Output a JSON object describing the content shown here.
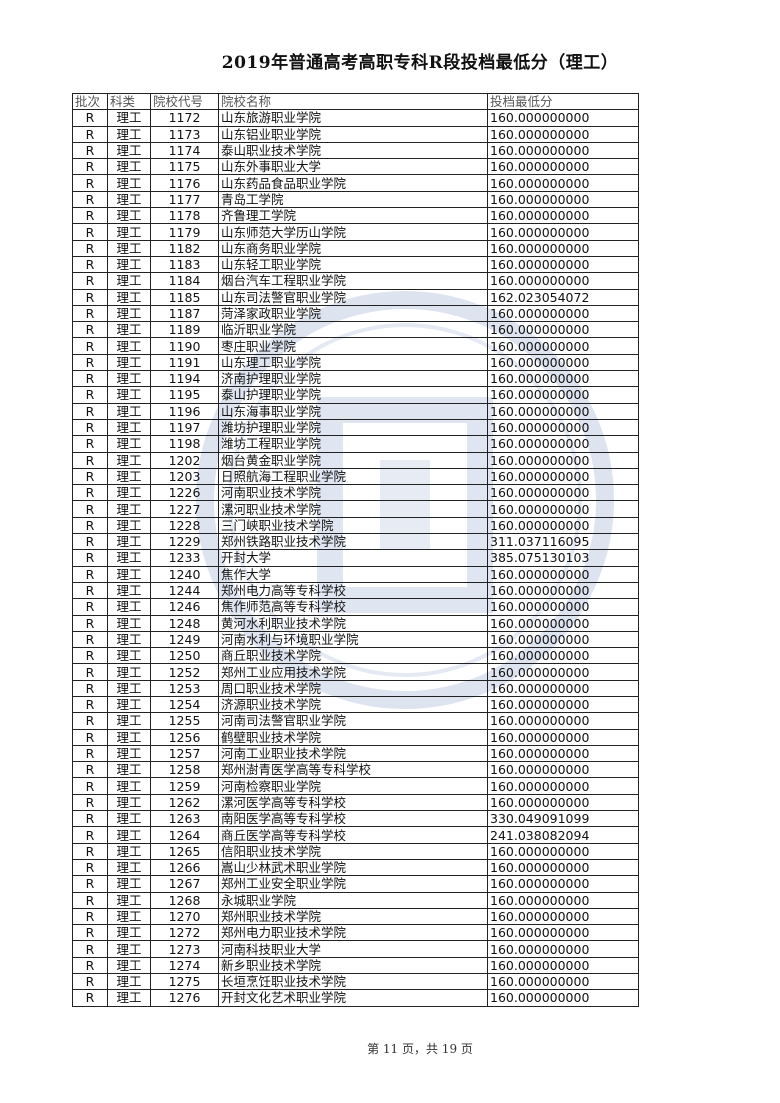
{
  "title": "2019年普通高考高职专科R段投档最低分（理工）",
  "table": {
    "headers": [
      "批次",
      "科类",
      "院校代号",
      "院校名称",
      "投档最低分"
    ],
    "rows": [
      [
        "R",
        "理工",
        "1172",
        "山东旅游职业学院",
        "160.000000000"
      ],
      [
        "R",
        "理工",
        "1173",
        "山东铝业职业学院",
        "160.000000000"
      ],
      [
        "R",
        "理工",
        "1174",
        "泰山职业技术学院",
        "160.000000000"
      ],
      [
        "R",
        "理工",
        "1175",
        "山东外事职业大学",
        "160.000000000"
      ],
      [
        "R",
        "理工",
        "1176",
        "山东药品食品职业学院",
        "160.000000000"
      ],
      [
        "R",
        "理工",
        "1177",
        "青岛工学院",
        "160.000000000"
      ],
      [
        "R",
        "理工",
        "1178",
        "齐鲁理工学院",
        "160.000000000"
      ],
      [
        "R",
        "理工",
        "1179",
        "山东师范大学历山学院",
        "160.000000000"
      ],
      [
        "R",
        "理工",
        "1182",
        "山东商务职业学院",
        "160.000000000"
      ],
      [
        "R",
        "理工",
        "1183",
        "山东轻工职业学院",
        "160.000000000"
      ],
      [
        "R",
        "理工",
        "1184",
        "烟台汽车工程职业学院",
        "160.000000000"
      ],
      [
        "R",
        "理工",
        "1185",
        "山东司法警官职业学院",
        "162.023054072"
      ],
      [
        "R",
        "理工",
        "1187",
        "菏泽家政职业学院",
        "160.000000000"
      ],
      [
        "R",
        "理工",
        "1189",
        "临沂职业学院",
        "160.000000000"
      ],
      [
        "R",
        "理工",
        "1190",
        "枣庄职业学院",
        "160.000000000"
      ],
      [
        "R",
        "理工",
        "1191",
        "山东理工职业学院",
        "160.000000000"
      ],
      [
        "R",
        "理工",
        "1194",
        "济南护理职业学院",
        "160.000000000"
      ],
      [
        "R",
        "理工",
        "1195",
        "泰山护理职业学院",
        "160.000000000"
      ],
      [
        "R",
        "理工",
        "1196",
        "山东海事职业学院",
        "160.000000000"
      ],
      [
        "R",
        "理工",
        "1197",
        "潍坊护理职业学院",
        "160.000000000"
      ],
      [
        "R",
        "理工",
        "1198",
        "潍坊工程职业学院",
        "160.000000000"
      ],
      [
        "R",
        "理工",
        "1202",
        "烟台黄金职业学院",
        "160.000000000"
      ],
      [
        "R",
        "理工",
        "1203",
        "日照航海工程职业学院",
        "160.000000000"
      ],
      [
        "R",
        "理工",
        "1226",
        "河南职业技术学院",
        "160.000000000"
      ],
      [
        "R",
        "理工",
        "1227",
        "漯河职业技术学院",
        "160.000000000"
      ],
      [
        "R",
        "理工",
        "1228",
        "三门峡职业技术学院",
        "160.000000000"
      ],
      [
        "R",
        "理工",
        "1229",
        "郑州铁路职业技术学院",
        "311.037116095"
      ],
      [
        "R",
        "理工",
        "1233",
        "开封大学",
        "385.075130103"
      ],
      [
        "R",
        "理工",
        "1240",
        "焦作大学",
        "160.000000000"
      ],
      [
        "R",
        "理工",
        "1244",
        "郑州电力高等专科学校",
        "160.000000000"
      ],
      [
        "R",
        "理工",
        "1246",
        "焦作师范高等专科学校",
        "160.000000000"
      ],
      [
        "R",
        "理工",
        "1248",
        "黄河水利职业技术学院",
        "160.000000000"
      ],
      [
        "R",
        "理工",
        "1249",
        "河南水利与环境职业学院",
        "160.000000000"
      ],
      [
        "R",
        "理工",
        "1250",
        "商丘职业技术学院",
        "160.000000000"
      ],
      [
        "R",
        "理工",
        "1252",
        "郑州工业应用技术学院",
        "160.000000000"
      ],
      [
        "R",
        "理工",
        "1253",
        "周口职业技术学院",
        "160.000000000"
      ],
      [
        "R",
        "理工",
        "1254",
        "济源职业技术学院",
        "160.000000000"
      ],
      [
        "R",
        "理工",
        "1255",
        "河南司法警官职业学院",
        "160.000000000"
      ],
      [
        "R",
        "理工",
        "1256",
        "鹤壁职业技术学院",
        "160.000000000"
      ],
      [
        "R",
        "理工",
        "1257",
        "河南工业职业技术学院",
        "160.000000000"
      ],
      [
        "R",
        "理工",
        "1258",
        "郑州澍青医学高等专科学校",
        "160.000000000"
      ],
      [
        "R",
        "理工",
        "1259",
        "河南检察职业学院",
        "160.000000000"
      ],
      [
        "R",
        "理工",
        "1262",
        "漯河医学高等专科学校",
        "160.000000000"
      ],
      [
        "R",
        "理工",
        "1263",
        "南阳医学高等专科学校",
        "330.049091099"
      ],
      [
        "R",
        "理工",
        "1264",
        "商丘医学高等专科学校",
        "241.038082094"
      ],
      [
        "R",
        "理工",
        "1265",
        "信阳职业技术学院",
        "160.000000000"
      ],
      [
        "R",
        "理工",
        "1266",
        "嵩山少林武术职业学院",
        "160.000000000"
      ],
      [
        "R",
        "理工",
        "1267",
        "郑州工业安全职业学院",
        "160.000000000"
      ],
      [
        "R",
        "理工",
        "1268",
        "永城职业学院",
        "160.000000000"
      ],
      [
        "R",
        "理工",
        "1270",
        "郑州职业技术学院",
        "160.000000000"
      ],
      [
        "R",
        "理工",
        "1272",
        "郑州电力职业技术学院",
        "160.000000000"
      ],
      [
        "R",
        "理工",
        "1273",
        "河南科技职业大学",
        "160.000000000"
      ],
      [
        "R",
        "理工",
        "1274",
        "新乡职业技术学院",
        "160.000000000"
      ],
      [
        "R",
        "理工",
        "1275",
        "长垣烹饪职业技术学院",
        "160.000000000"
      ],
      [
        "R",
        "理工",
        "1276",
        "开封文化艺术职业学院",
        "160.000000000"
      ]
    ]
  },
  "footer": "第 11 页，共 19 页",
  "watermark": {
    "text_top": "教育考",
    "text_bottom": "EXAMINATION",
    "color": "#c9d3e6"
  }
}
